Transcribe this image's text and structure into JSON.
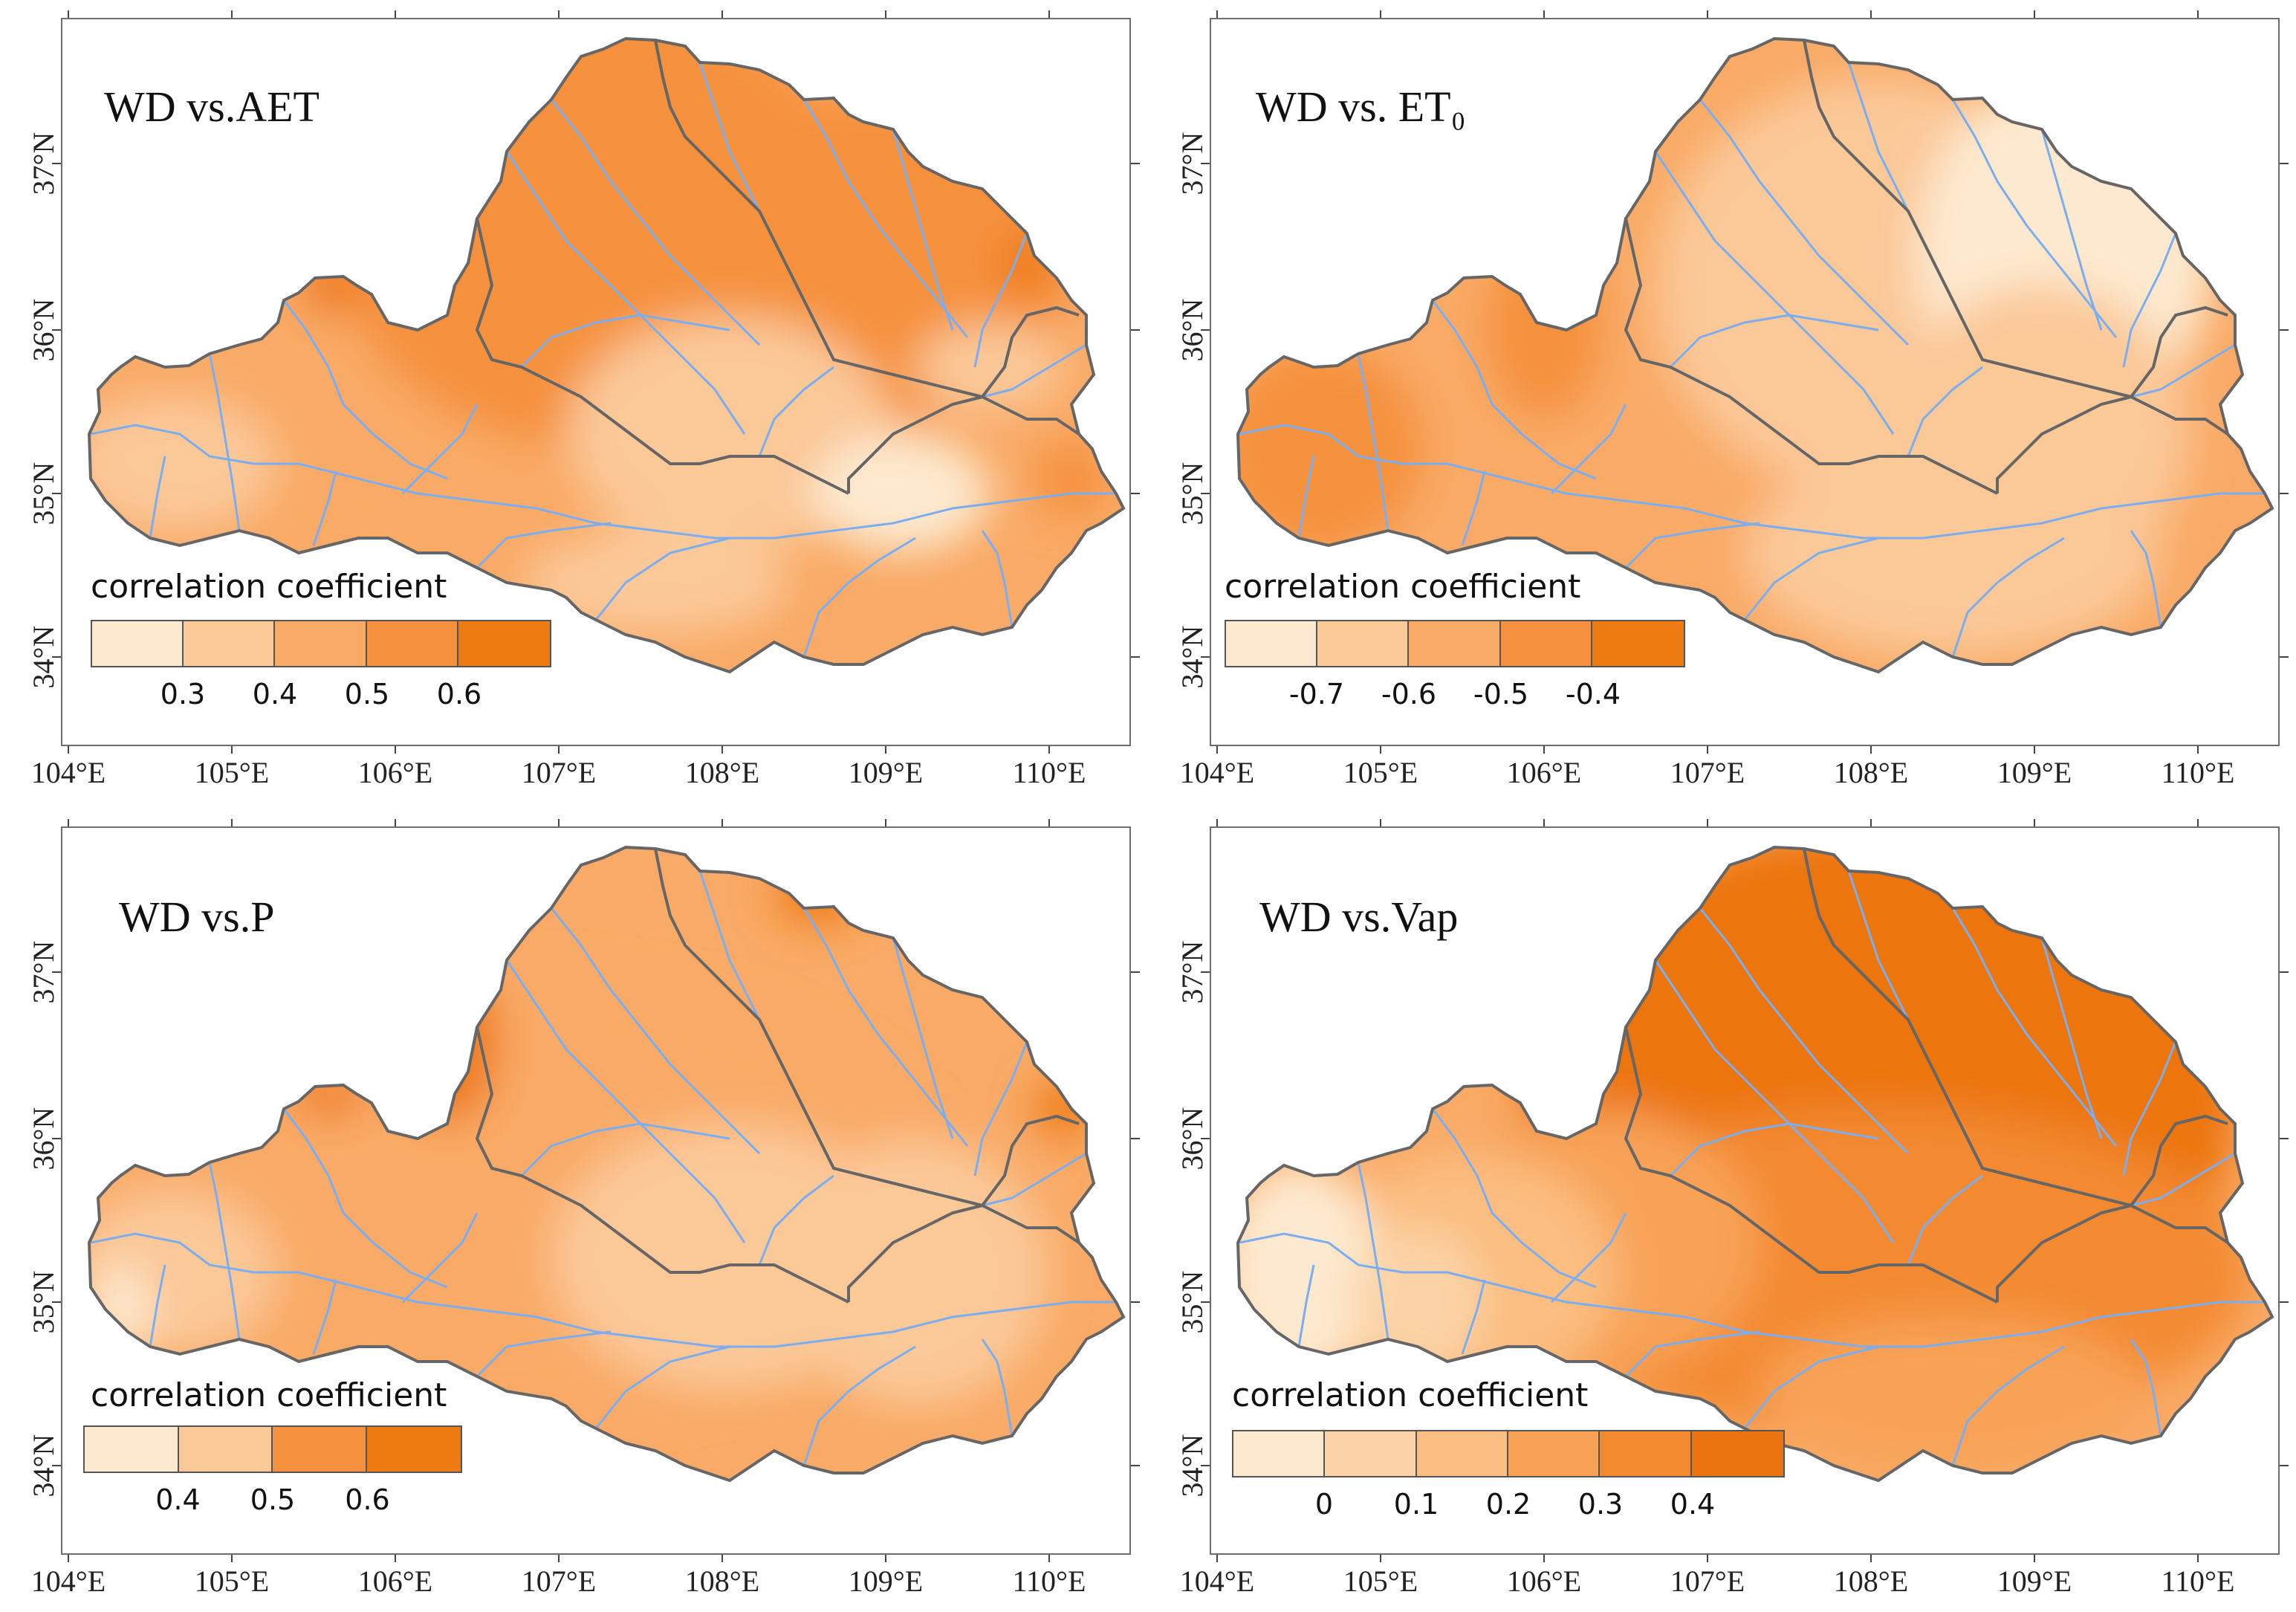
{
  "palette": [
    "#fde9cf",
    "#fbc898",
    "#f9aa66",
    "#f5913e",
    "#ee7a12"
  ],
  "boundary_color": "#666666",
  "river_color": "#7aaef0",
  "lat_labels": [
    "34°N",
    "35°N",
    "36°N",
    "37°N"
  ],
  "lon_labels": [
    "104°E",
    "105°E",
    "106°E",
    "107°E",
    "108°E",
    "109°E",
    "110°E"
  ],
  "panels": [
    {
      "title": "WD vs.AET",
      "legend_title": "correlation coefficient",
      "legend_labels": [
        "0.3",
        "0.4",
        "0.5",
        "0.6"
      ],
      "legend_classes": 5
    },
    {
      "title": "WD vs.  ET₀",
      "legend_title": "correlation coefficient",
      "legend_labels": [
        "-0.7",
        "-0.6",
        "-0.5",
        "-0.4"
      ],
      "legend_classes": 5
    },
    {
      "title": "WD vs.P",
      "legend_title": "correlation coefficient",
      "legend_labels": [
        "0.4",
        "0.5",
        "0.6"
      ],
      "legend_classes": 4
    },
    {
      "title": "WD vs.Vap",
      "legend_title": "correlation coefficient",
      "legend_labels": [
        "0",
        "0.1",
        "0.2",
        "0.3",
        "0.4"
      ],
      "legend_classes": 6
    }
  ]
}
